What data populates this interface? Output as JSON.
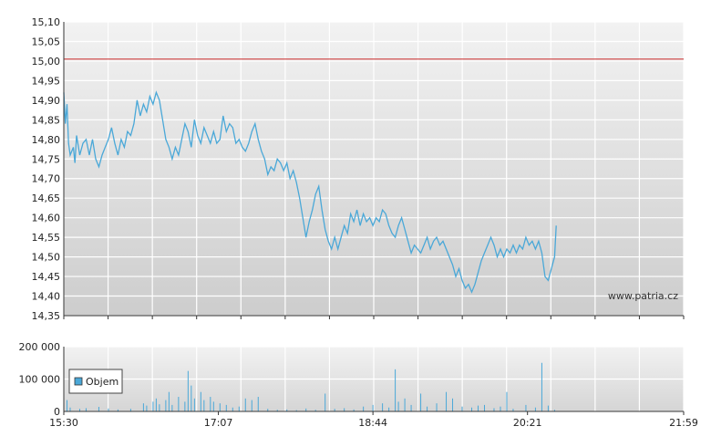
{
  "price_chart": {
    "type": "line",
    "ylim": [
      14.35,
      15.1
    ],
    "yticks": [
      "15,10",
      "15,05",
      "15,00",
      "14,95",
      "14,90",
      "14,85",
      "14,80",
      "14,75",
      "14,70",
      "14,65",
      "14,60",
      "14,55",
      "14,50",
      "14,45",
      "14,40",
      "14,35"
    ],
    "yvalues": [
      15.1,
      15.05,
      15.0,
      14.95,
      14.9,
      14.85,
      14.8,
      14.75,
      14.7,
      14.65,
      14.6,
      14.55,
      14.5,
      14.45,
      14.4,
      14.35
    ],
    "reference_line": 15.005,
    "reference_color": "#d05050",
    "line_color": "#4aa8d8",
    "x_range_minutes": [
      930,
      1319
    ],
    "series": [
      [
        930,
        14.92
      ],
      [
        931,
        14.84
      ],
      [
        932,
        14.89
      ],
      [
        933,
        14.79
      ],
      [
        934,
        14.76
      ],
      [
        936,
        14.78
      ],
      [
        937,
        14.74
      ],
      [
        938,
        14.81
      ],
      [
        940,
        14.76
      ],
      [
        942,
        14.79
      ],
      [
        944,
        14.8
      ],
      [
        946,
        14.76
      ],
      [
        948,
        14.8
      ],
      [
        950,
        14.75
      ],
      [
        952,
        14.73
      ],
      [
        954,
        14.76
      ],
      [
        956,
        14.78
      ],
      [
        958,
        14.8
      ],
      [
        960,
        14.83
      ],
      [
        962,
        14.79
      ],
      [
        964,
        14.76
      ],
      [
        966,
        14.8
      ],
      [
        968,
        14.78
      ],
      [
        970,
        14.82
      ],
      [
        972,
        14.81
      ],
      [
        974,
        14.84
      ],
      [
        976,
        14.9
      ],
      [
        978,
        14.86
      ],
      [
        980,
        14.89
      ],
      [
        982,
        14.87
      ],
      [
        984,
        14.91
      ],
      [
        986,
        14.89
      ],
      [
        988,
        14.92
      ],
      [
        990,
        14.9
      ],
      [
        992,
        14.85
      ],
      [
        994,
        14.8
      ],
      [
        996,
        14.78
      ],
      [
        998,
        14.75
      ],
      [
        1000,
        14.78
      ],
      [
        1002,
        14.76
      ],
      [
        1004,
        14.8
      ],
      [
        1006,
        14.84
      ],
      [
        1008,
        14.82
      ],
      [
        1010,
        14.78
      ],
      [
        1012,
        14.85
      ],
      [
        1014,
        14.81
      ],
      [
        1016,
        14.79
      ],
      [
        1018,
        14.83
      ],
      [
        1020,
        14.81
      ],
      [
        1022,
        14.79
      ],
      [
        1024,
        14.82
      ],
      [
        1026,
        14.79
      ],
      [
        1028,
        14.8
      ],
      [
        1030,
        14.86
      ],
      [
        1032,
        14.82
      ],
      [
        1034,
        14.84
      ],
      [
        1036,
        14.83
      ],
      [
        1038,
        14.79
      ],
      [
        1040,
        14.8
      ],
      [
        1042,
        14.78
      ],
      [
        1044,
        14.77
      ],
      [
        1046,
        14.79
      ],
      [
        1048,
        14.82
      ],
      [
        1050,
        14.84
      ],
      [
        1052,
        14.8
      ],
      [
        1054,
        14.77
      ],
      [
        1056,
        14.75
      ],
      [
        1058,
        14.71
      ],
      [
        1060,
        14.73
      ],
      [
        1062,
        14.72
      ],
      [
        1064,
        14.75
      ],
      [
        1066,
        14.74
      ],
      [
        1068,
        14.72
      ],
      [
        1070,
        14.74
      ],
      [
        1072,
        14.7
      ],
      [
        1074,
        14.72
      ],
      [
        1076,
        14.69
      ],
      [
        1078,
        14.65
      ],
      [
        1080,
        14.6
      ],
      [
        1082,
        14.55
      ],
      [
        1084,
        14.59
      ],
      [
        1086,
        14.62
      ],
      [
        1088,
        14.66
      ],
      [
        1090,
        14.68
      ],
      [
        1092,
        14.62
      ],
      [
        1094,
        14.57
      ],
      [
        1096,
        14.54
      ],
      [
        1098,
        14.52
      ],
      [
        1100,
        14.55
      ],
      [
        1102,
        14.52
      ],
      [
        1104,
        14.55
      ],
      [
        1106,
        14.58
      ],
      [
        1108,
        14.56
      ],
      [
        1110,
        14.61
      ],
      [
        1112,
        14.59
      ],
      [
        1114,
        14.62
      ],
      [
        1116,
        14.58
      ],
      [
        1118,
        14.61
      ],
      [
        1120,
        14.59
      ],
      [
        1122,
        14.6
      ],
      [
        1124,
        14.58
      ],
      [
        1126,
        14.6
      ],
      [
        1128,
        14.59
      ],
      [
        1130,
        14.62
      ],
      [
        1132,
        14.61
      ],
      [
        1134,
        14.58
      ],
      [
        1136,
        14.56
      ],
      [
        1138,
        14.55
      ],
      [
        1140,
        14.58
      ],
      [
        1142,
        14.6
      ],
      [
        1144,
        14.57
      ],
      [
        1146,
        14.54
      ],
      [
        1148,
        14.51
      ],
      [
        1150,
        14.53
      ],
      [
        1152,
        14.52
      ],
      [
        1154,
        14.51
      ],
      [
        1156,
        14.53
      ],
      [
        1158,
        14.55
      ],
      [
        1160,
        14.52
      ],
      [
        1162,
        14.54
      ],
      [
        1164,
        14.55
      ],
      [
        1166,
        14.53
      ],
      [
        1168,
        14.54
      ],
      [
        1170,
        14.52
      ],
      [
        1172,
        14.5
      ],
      [
        1174,
        14.48
      ],
      [
        1176,
        14.45
      ],
      [
        1178,
        14.47
      ],
      [
        1180,
        14.44
      ],
      [
        1182,
        14.42
      ],
      [
        1184,
        14.43
      ],
      [
        1186,
        14.41
      ],
      [
        1188,
        14.43
      ],
      [
        1190,
        14.46
      ],
      [
        1192,
        14.49
      ],
      [
        1194,
        14.51
      ],
      [
        1196,
        14.53
      ],
      [
        1198,
        14.55
      ],
      [
        1200,
        14.53
      ],
      [
        1202,
        14.5
      ],
      [
        1204,
        14.52
      ],
      [
        1206,
        14.5
      ],
      [
        1208,
        14.52
      ],
      [
        1210,
        14.51
      ],
      [
        1212,
        14.53
      ],
      [
        1214,
        14.51
      ],
      [
        1216,
        14.53
      ],
      [
        1218,
        14.52
      ],
      [
        1220,
        14.55
      ],
      [
        1222,
        14.53
      ],
      [
        1224,
        14.54
      ],
      [
        1226,
        14.52
      ],
      [
        1228,
        14.54
      ],
      [
        1230,
        14.51
      ],
      [
        1232,
        14.45
      ],
      [
        1234,
        14.44
      ],
      [
        1236,
        14.47
      ],
      [
        1238,
        14.5
      ],
      [
        1239,
        14.58
      ]
    ],
    "watermark": "www.patria.cz"
  },
  "volume_chart": {
    "type": "bar",
    "ylim": [
      0,
      200000
    ],
    "yticks": [
      "200 000",
      "100 000",
      "0"
    ],
    "yvalues": [
      200000,
      100000,
      0
    ],
    "bar_color": "#4aa8d8",
    "legend": "Objem",
    "bars": [
      [
        932,
        35000
      ],
      [
        934,
        12000
      ],
      [
        940,
        8000
      ],
      [
        944,
        10000
      ],
      [
        952,
        14000
      ],
      [
        958,
        9000
      ],
      [
        964,
        6000
      ],
      [
        972,
        8000
      ],
      [
        980,
        25000
      ],
      [
        982,
        18000
      ],
      [
        986,
        30000
      ],
      [
        988,
        40000
      ],
      [
        990,
        22000
      ],
      [
        994,
        35000
      ],
      [
        996,
        60000
      ],
      [
        998,
        20000
      ],
      [
        1002,
        45000
      ],
      [
        1006,
        30000
      ],
      [
        1008,
        125000
      ],
      [
        1010,
        80000
      ],
      [
        1012,
        40000
      ],
      [
        1016,
        60000
      ],
      [
        1018,
        35000
      ],
      [
        1022,
        45000
      ],
      [
        1024,
        30000
      ],
      [
        1028,
        25000
      ],
      [
        1032,
        20000
      ],
      [
        1036,
        12000
      ],
      [
        1040,
        15000
      ],
      [
        1044,
        40000
      ],
      [
        1048,
        35000
      ],
      [
        1052,
        45000
      ],
      [
        1058,
        8000
      ],
      [
        1064,
        5000
      ],
      [
        1070,
        6000
      ],
      [
        1076,
        4000
      ],
      [
        1082,
        9000
      ],
      [
        1088,
        5000
      ],
      [
        1094,
        55000
      ],
      [
        1100,
        8000
      ],
      [
        1106,
        10000
      ],
      [
        1112,
        6000
      ],
      [
        1118,
        15000
      ],
      [
        1124,
        20000
      ],
      [
        1130,
        25000
      ],
      [
        1134,
        12000
      ],
      [
        1138,
        130000
      ],
      [
        1140,
        30000
      ],
      [
        1144,
        40000
      ],
      [
        1148,
        20000
      ],
      [
        1154,
        55000
      ],
      [
        1158,
        15000
      ],
      [
        1164,
        25000
      ],
      [
        1170,
        60000
      ],
      [
        1174,
        40000
      ],
      [
        1180,
        15000
      ],
      [
        1186,
        12000
      ],
      [
        1190,
        18000
      ],
      [
        1194,
        20000
      ],
      [
        1200,
        10000
      ],
      [
        1204,
        15000
      ],
      [
        1208,
        60000
      ],
      [
        1212,
        8000
      ],
      [
        1220,
        20000
      ],
      [
        1226,
        12000
      ],
      [
        1230,
        150000
      ],
      [
        1234,
        18000
      ],
      [
        1238,
        5000
      ]
    ]
  },
  "xticks": [
    {
      "label": "15:30",
      "minute": 930
    },
    {
      "label": "17:07",
      "minute": 1027
    },
    {
      "label": "18:44",
      "minute": 1124
    },
    {
      "label": "20:21",
      "minute": 1221
    },
    {
      "label": "21:59",
      "minute": 1319
    }
  ]
}
